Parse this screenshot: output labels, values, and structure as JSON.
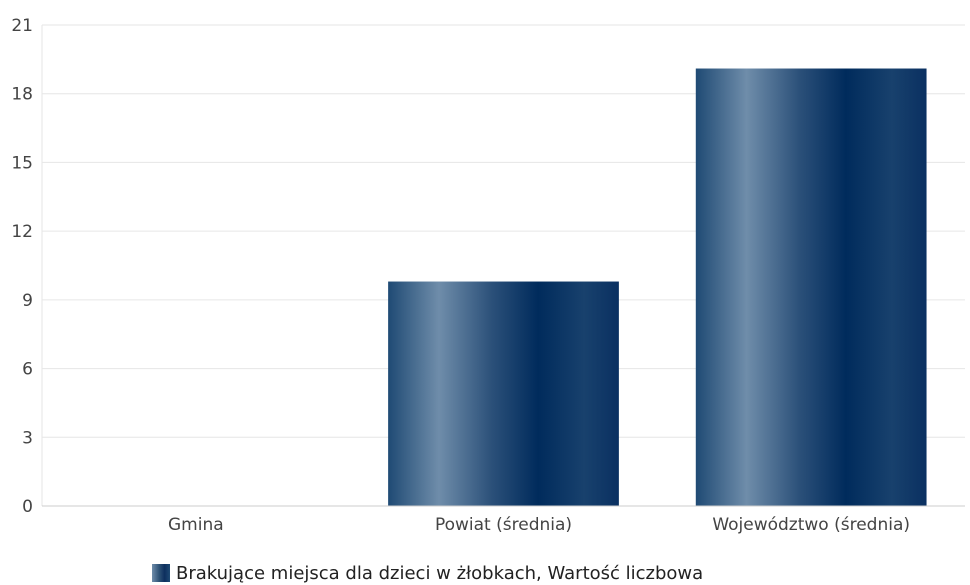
{
  "chart_data": {
    "type": "bar",
    "categories": [
      "Gmina",
      "Powiat (średnia)",
      "Województwo (średnia)"
    ],
    "series": [
      {
        "name": "Brakujące miejsca dla dzieci w żłobkach, Wartość liczbowa",
        "values": [
          0,
          9.8,
          19.1
        ]
      }
    ],
    "ylim": [
      0,
      21
    ],
    "yticks": [
      0,
      3,
      6,
      9,
      12,
      15,
      18,
      21
    ],
    "grid": true,
    "legend_position": "bottom",
    "colors": {
      "bar_dark": "#002b5c",
      "bar_light": "#6f8daa",
      "grid": "#e6e6e6",
      "axis": "#cccccc"
    }
  },
  "legend": {
    "label": "Brakujące miejsca dla dzieci w żłobkach, Wartość liczbowa"
  }
}
